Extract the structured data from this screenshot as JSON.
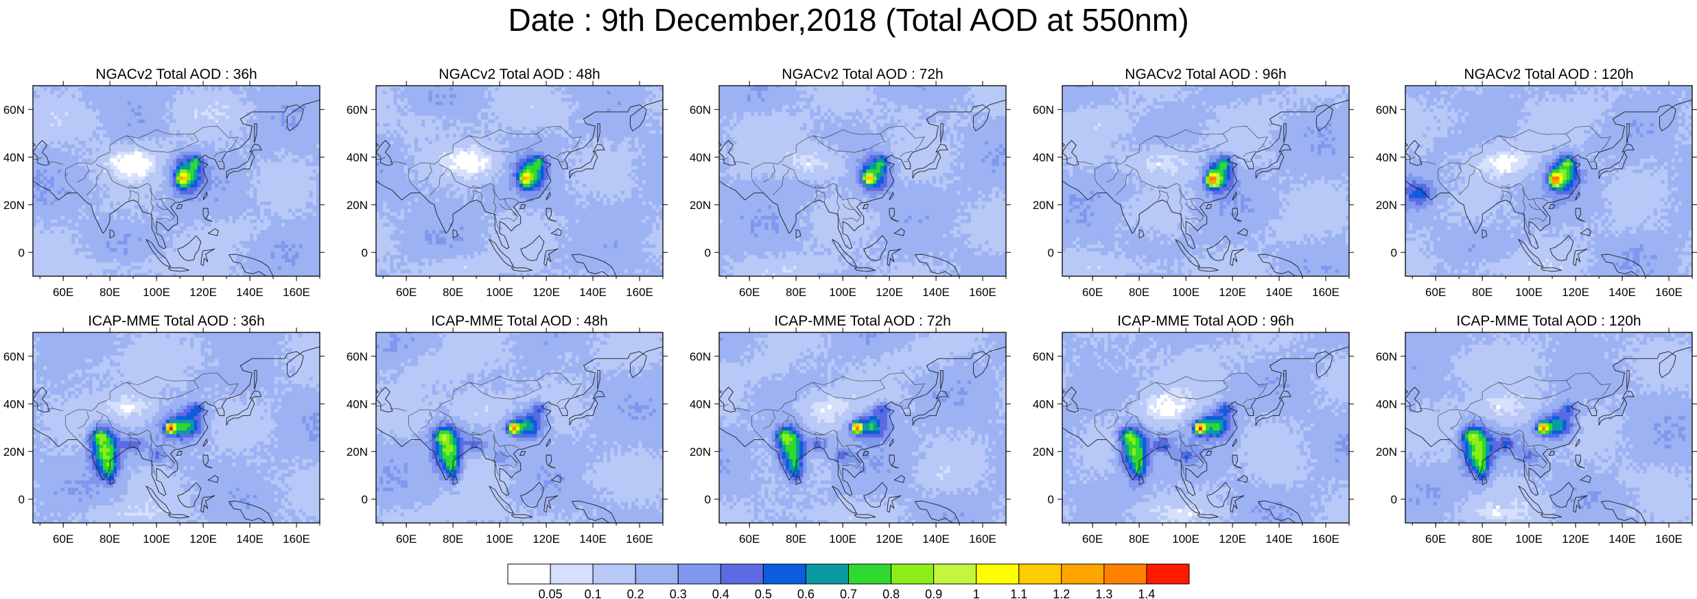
{
  "title": "Date : 9th December,2018 (Total AOD at 550nm)",
  "panels": [
    {
      "title": "NGACv2 Total AOD : 36h",
      "model": "ngac",
      "hour": 36
    },
    {
      "title": "NGACv2 Total AOD : 48h",
      "model": "ngac",
      "hour": 48
    },
    {
      "title": "NGACv2 Total AOD : 72h",
      "model": "ngac",
      "hour": 72
    },
    {
      "title": "NGACv2 Total AOD : 96h",
      "model": "ngac",
      "hour": 96
    },
    {
      "title": "NGACv2 Total AOD : 120h",
      "model": "ngac",
      "hour": 120
    },
    {
      "title": "ICAP-MME Total AOD : 36h",
      "model": "icap",
      "hour": 36
    },
    {
      "title": "ICAP-MME Total AOD : 48h",
      "model": "icap",
      "hour": 48
    },
    {
      "title": "ICAP-MME Total AOD : 72h",
      "model": "icap",
      "hour": 72
    },
    {
      "title": "ICAP-MME Total AOD : 96h",
      "model": "icap",
      "hour": 96
    },
    {
      "title": "ICAP-MME Total AOD : 120h",
      "model": "icap",
      "hour": 120
    }
  ],
  "map_extent": {
    "lon": [
      47,
      170
    ],
    "lat": [
      -10,
      70
    ]
  },
  "lon_ticks": [
    {
      "value": 60,
      "label": "60E"
    },
    {
      "value": 80,
      "label": "80E"
    },
    {
      "value": 100,
      "label": "100E"
    },
    {
      "value": 120,
      "label": "120E"
    },
    {
      "value": 140,
      "label": "140E"
    },
    {
      "value": 160,
      "label": "160E"
    }
  ],
  "lat_ticks": [
    {
      "value": 0,
      "label": "0"
    },
    {
      "value": 20,
      "label": "20N"
    },
    {
      "value": 40,
      "label": "40N"
    },
    {
      "value": 60,
      "label": "60N"
    }
  ],
  "colorbar": {
    "labels": [
      "0.05",
      "0.1",
      "0.2",
      "0.3",
      "0.4",
      "0.5",
      "0.6",
      "0.7",
      "0.8",
      "0.9",
      "1",
      "1.1",
      "1.2",
      "1.3",
      "1.4"
    ],
    "colors": [
      "#ffffff",
      "#d6e0fc",
      "#b8c9f7",
      "#9cb2f3",
      "#7f98ee",
      "#5c6ae4",
      "#0d5cdf",
      "#0b9aa2",
      "#2fd92f",
      "#8cee18",
      "#c6f53f",
      "#ffff00",
      "#ffcc00",
      "#ffa500",
      "#ff7f00",
      "#ff1a00"
    ]
  }
}
